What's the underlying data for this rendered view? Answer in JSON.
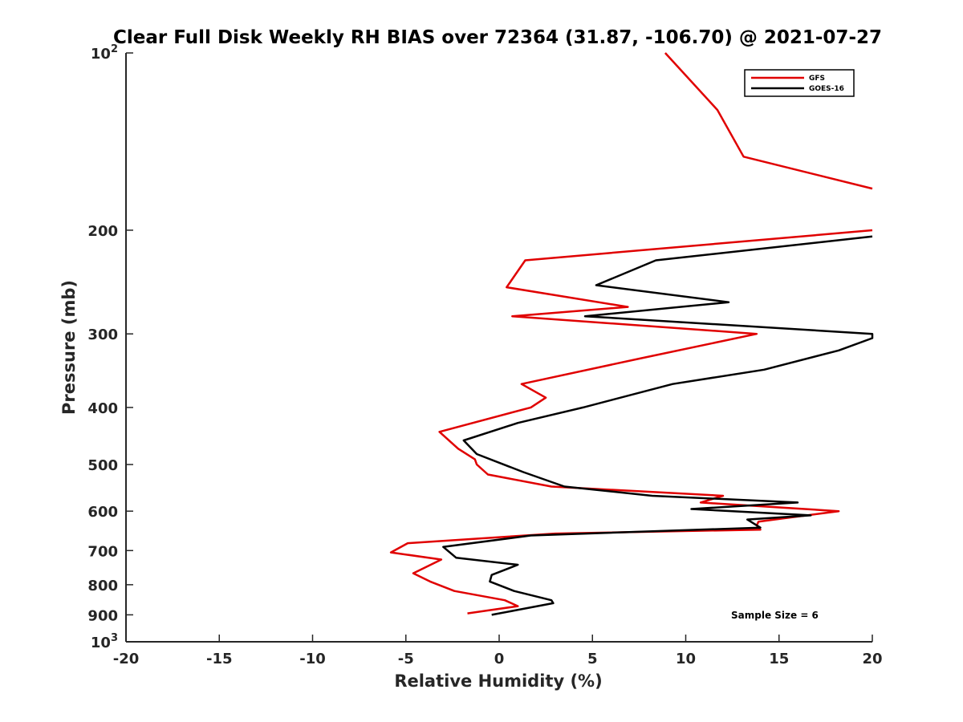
{
  "chart_data": {
    "type": "line",
    "title": "Clear Full Disk Weekly RH BIAS over 72364 (31.87, -106.70) @ 2021-07-27",
    "xlabel": "Relative Humidity (%)",
    "ylabel": "Pressure (mb)",
    "xlim": [
      -20,
      20
    ],
    "ylim": [
      100,
      1000
    ],
    "y_scale": "log",
    "y_reversed": true,
    "grid": false,
    "legend_position": "top-right",
    "x_ticks": [
      {
        "value": -20,
        "label": "-20"
      },
      {
        "value": -15,
        "label": "-15"
      },
      {
        "value": -10,
        "label": "-10"
      },
      {
        "value": -5,
        "label": "-5"
      },
      {
        "value": 0,
        "label": "0"
      },
      {
        "value": 5,
        "label": "5"
      },
      {
        "value": 10,
        "label": "10"
      },
      {
        "value": 15,
        "label": "15"
      },
      {
        "value": 20,
        "label": "20"
      }
    ],
    "y_ticks": [
      {
        "value": 100,
        "label": "10",
        "sup": "2"
      },
      {
        "value": 200,
        "label": "200"
      },
      {
        "value": 300,
        "label": "300"
      },
      {
        "value": 400,
        "label": "400"
      },
      {
        "value": 500,
        "label": "500"
      },
      {
        "value": 600,
        "label": "600"
      },
      {
        "value": 700,
        "label": "700"
      },
      {
        "value": 800,
        "label": "800"
      },
      {
        "value": 900,
        "label": "900"
      },
      {
        "value": 1000,
        "label": "10",
        "sup": "3"
      }
    ],
    "series": [
      {
        "name": "GFS",
        "color": "#e00000",
        "points": [
          [
            8.9,
            100
          ],
          [
            11.7,
            125
          ],
          [
            13.1,
            150
          ],
          [
            20,
            170
          ],
          [
            null,
            null
          ],
          [
            20,
            200
          ],
          [
            1.4,
            225
          ],
          [
            0.4,
            250
          ],
          [
            6.9,
            270
          ],
          [
            0.7,
            280
          ],
          [
            13.8,
            300
          ],
          [
            7.6,
            330
          ],
          [
            1.2,
            365
          ],
          [
            2.5,
            385
          ],
          [
            1.7,
            400
          ],
          [
            -3.2,
            440
          ],
          [
            -2.2,
            470
          ],
          [
            -1.3,
            490
          ],
          [
            -1.2,
            500
          ],
          [
            -0.6,
            520
          ],
          [
            2.8,
            545
          ],
          [
            12.0,
            565
          ],
          [
            10.8,
            580
          ],
          [
            18.2,
            600
          ],
          [
            13.9,
            625
          ],
          [
            13.8,
            635
          ],
          [
            14.0,
            645
          ],
          [
            3.0,
            655
          ],
          [
            -4.9,
            680
          ],
          [
            -5.8,
            705
          ],
          [
            -3.1,
            725
          ],
          [
            -4.6,
            765
          ],
          [
            -3.7,
            790
          ],
          [
            -2.4,
            820
          ],
          [
            0.3,
            850
          ],
          [
            1.0,
            870
          ],
          [
            -1.7,
            895
          ]
        ]
      },
      {
        "name": "GOES-16",
        "color": "#000000",
        "points": [
          [
            20,
            205
          ],
          [
            8.4,
            225
          ],
          [
            5.2,
            248
          ],
          [
            12.3,
            265
          ],
          [
            4.6,
            280
          ],
          [
            20,
            300
          ],
          [
            20,
            305
          ],
          [
            18.2,
            320
          ],
          [
            14.2,
            345
          ],
          [
            9.3,
            365
          ],
          [
            4.5,
            400
          ],
          [
            1.0,
            425
          ],
          [
            -1.9,
            455
          ],
          [
            -1.2,
            480
          ],
          [
            1.3,
            515
          ],
          [
            3.5,
            545
          ],
          [
            8.2,
            565
          ],
          [
            16.0,
            580
          ],
          [
            10.3,
            595
          ],
          [
            16.7,
            610
          ],
          [
            13.3,
            620
          ],
          [
            14.0,
            640
          ],
          [
            1.7,
            660
          ],
          [
            -3.0,
            690
          ],
          [
            -2.3,
            720
          ],
          [
            1.0,
            740
          ],
          [
            -0.4,
            770
          ],
          [
            -0.5,
            790
          ],
          [
            0.8,
            820
          ],
          [
            2.8,
            850
          ],
          [
            2.9,
            860
          ],
          [
            -0.4,
            900
          ]
        ]
      }
    ],
    "annotation": "Sample Size = 6"
  }
}
